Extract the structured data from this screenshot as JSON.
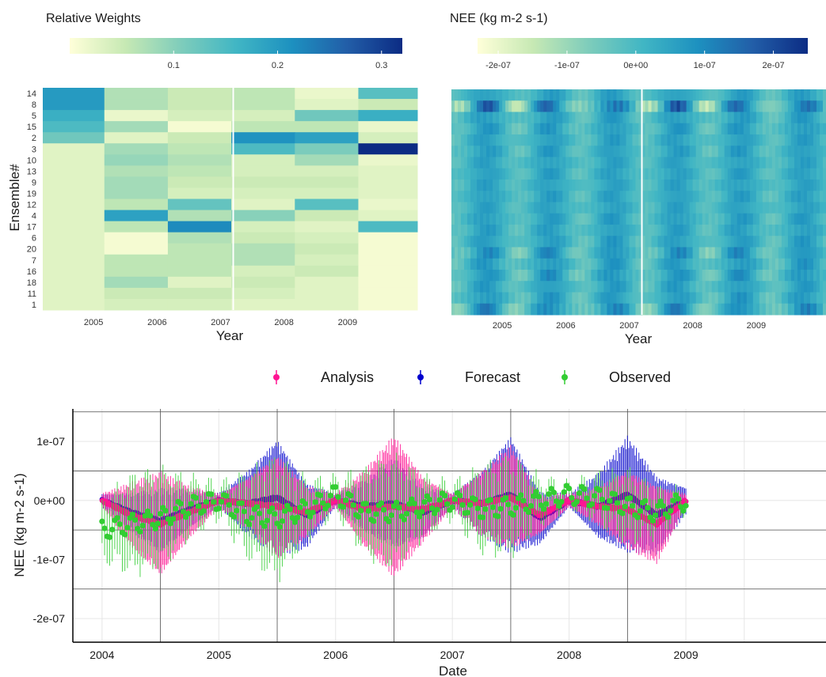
{
  "chart_data": [
    {
      "type": "heatmap",
      "legend_title": "Relative Weights",
      "legend_ticks": [
        "0.1",
        "0.2",
        "0.3"
      ],
      "legend_tick_values": [
        0.1,
        0.2,
        0.3
      ],
      "value_range": [
        0.0,
        0.32
      ],
      "colorscale": [
        "#ffffd9",
        "#c7e9b4",
        "#7fcdbb",
        "#41b6c4",
        "#1d91c0",
        "#225ea8",
        "#0c2c84"
      ],
      "xlabel": "Year",
      "ylabel": "Ensemble#",
      "x_ticks": [
        "2005",
        "2006",
        "2007",
        "2008",
        "2009"
      ],
      "x_tick_values": [
        2005,
        2006,
        2007,
        2008,
        2009
      ],
      "x_range": [
        2004.0,
        2009.9
      ],
      "y_categories": [
        "14",
        "8",
        "5",
        "15",
        "2",
        "3",
        "10",
        "13",
        "9",
        "19",
        "12",
        "4",
        "17",
        "6",
        "20",
        "7",
        "16",
        "18",
        "11",
        "1"
      ],
      "columns": [
        2004.5,
        2005.5,
        2006.5,
        2007.5,
        2008.5,
        2009.5
      ],
      "values": [
        [
          0.2,
          0.07,
          0.05,
          0.06,
          0.02,
          0.14
        ],
        [
          0.2,
          0.07,
          0.05,
          0.06,
          0.03,
          0.05
        ],
        [
          0.17,
          0.02,
          0.04,
          0.04,
          0.12,
          0.17
        ],
        [
          0.15,
          0.08,
          0.01,
          0.06,
          0.06,
          0.02
        ],
        [
          0.12,
          0.03,
          0.05,
          0.21,
          0.19,
          0.04
        ],
        [
          0.03,
          0.08,
          0.06,
          0.15,
          0.11,
          0.32
        ],
        [
          0.03,
          0.09,
          0.07,
          0.04,
          0.08,
          0.02
        ],
        [
          0.03,
          0.07,
          0.06,
          0.04,
          0.04,
          0.03
        ],
        [
          0.03,
          0.08,
          0.05,
          0.05,
          0.05,
          0.03
        ],
        [
          0.03,
          0.08,
          0.04,
          0.04,
          0.04,
          0.03
        ],
        [
          0.03,
          0.06,
          0.13,
          0.03,
          0.14,
          0.02
        ],
        [
          0.03,
          0.19,
          0.07,
          0.1,
          0.05,
          0.03
        ],
        [
          0.03,
          0.06,
          0.22,
          0.04,
          0.03,
          0.15
        ],
        [
          0.03,
          0.01,
          0.07,
          0.05,
          0.04,
          0.01
        ],
        [
          0.03,
          0.01,
          0.06,
          0.07,
          0.05,
          0.01
        ],
        [
          0.03,
          0.06,
          0.06,
          0.07,
          0.04,
          0.01
        ],
        [
          0.03,
          0.06,
          0.06,
          0.04,
          0.05,
          0.01
        ],
        [
          0.03,
          0.08,
          0.03,
          0.05,
          0.03,
          0.01
        ],
        [
          0.03,
          0.05,
          0.05,
          0.04,
          0.03,
          0.01
        ],
        [
          0.03,
          0.04,
          0.04,
          0.03,
          0.03,
          0.01
        ]
      ],
      "year_divider": 2007
    },
    {
      "type": "heatmap",
      "legend_title": "NEE (kg m-2 s-1)",
      "legend_ticks": [
        "-2e-07",
        "-1e-07",
        "0e+00",
        "1e-07",
        "2e-07"
      ],
      "legend_tick_values": [
        -2e-07,
        -1e-07,
        0,
        1e-07,
        2e-07
      ],
      "value_range": [
        -2.3e-07,
        2.5e-07
      ],
      "colorscale": [
        "#ffffd9",
        "#c7e9b4",
        "#7fcdbb",
        "#41b6c4",
        "#1d91c0",
        "#225ea8",
        "#0c2c84"
      ],
      "xlabel": "Year",
      "x_ticks": [
        "2005",
        "2006",
        "2007",
        "2008",
        "2009"
      ],
      "x_tick_values": [
        2005,
        2006,
        2007,
        2008,
        2009
      ],
      "x_range": [
        2004.0,
        2009.9
      ],
      "rows": 20,
      "row_variability": [
        0.8,
        2.4,
        0.9,
        1.0,
        0.8,
        0.9,
        0.7,
        0.8,
        0.7,
        0.8,
        0.7,
        0.9,
        0.8,
        0.9,
        1.4,
        1.0,
        1.2,
        0.9,
        1.0,
        1.6
      ],
      "year_divider": 2007
    },
    {
      "type": "scatter",
      "xlabel": "Date",
      "ylabel": "NEE (kg m-2 s-1)",
      "x_ticks": [
        "2004",
        "2005",
        "2006",
        "2007",
        "2008",
        "2009"
      ],
      "x_tick_values": [
        2004,
        2005,
        2006,
        2007,
        2008,
        2009
      ],
      "x_range": [
        2003.75,
        2010.2
      ],
      "y_ticks": [
        "1e-07",
        "0e+00",
        "-1e-07",
        "-2e-07"
      ],
      "y_tick_values": [
        1e-07,
        0,
        -1e-07,
        -2e-07
      ],
      "y_range": [
        -2.4e-07,
        1.55e-07
      ],
      "horizontal_reference_lines": [
        1.5e-07,
        5e-08,
        -5e-08,
        -1.5e-07
      ],
      "vertical_reference_lines": [
        2004.5,
        2005.5,
        2006.5,
        2007.5,
        2008.5
      ],
      "legend": [
        "Analysis",
        "Forecast",
        "Observed"
      ],
      "legend_placement": "top",
      "colors": {
        "Analysis": "#ff1493",
        "Forecast": "#0000cd",
        "Observed": "#32cd32"
      },
      "series": [
        {
          "name": "Analysis",
          "x": [
            2004.0,
            2004.25,
            2004.5,
            2004.75,
            2005.0,
            2005.25,
            2005.5,
            2005.75,
            2006.0,
            2006.25,
            2006.5,
            2006.75,
            2007.0,
            2007.25,
            2007.5,
            2007.75,
            2008.0,
            2008.25,
            2008.5,
            2008.75,
            2009.0
          ],
          "y": [
            0,
            -2.5e-08,
            -4e-08,
            -2e-08,
            0,
            -5e-09,
            -1e-08,
            -2e-08,
            0,
            -1.5e-08,
            -1e-08,
            -1.5e-08,
            0,
            -5e-09,
            5e-09,
            -2.5e-08,
            0,
            -1e-08,
            -1.5e-08,
            -4e-08,
            0
          ],
          "spread": [
            1e-08,
            5e-08,
            8e-08,
            4e-08,
            1e-08,
            4e-08,
            8e-08,
            4e-08,
            1e-08,
            6e-08,
            1.1e-07,
            5e-08,
            1e-08,
            5e-08,
            8e-08,
            3e-08,
            1e-08,
            3e-08,
            6e-08,
            6e-08,
            1e-08
          ]
        },
        {
          "name": "Forecast",
          "x": [
            2004.0,
            2004.25,
            2004.5,
            2004.75,
            2005.0,
            2005.25,
            2005.5,
            2005.75,
            2006.0,
            2006.25,
            2006.5,
            2006.75,
            2007.0,
            2007.25,
            2007.5,
            2007.75,
            2008.0,
            2008.25,
            2008.5,
            2008.75,
            2009.0
          ],
          "y": [
            0,
            -2e-08,
            -3.5e-08,
            -1.5e-08,
            0,
            -5e-09,
            5e-09,
            -2.5e-08,
            0,
            -1e-08,
            -5e-09,
            -2e-08,
            0,
            -5e-09,
            1e-08,
            -3e-08,
            0,
            -1e-08,
            1e-08,
            -2.5e-08,
            0
          ],
          "spread": [
            1e-08,
            3e-08,
            5e-08,
            3e-08,
            1e-08,
            5e-08,
            9e-08,
            5e-08,
            1e-08,
            4e-08,
            7e-08,
            4e-08,
            1e-08,
            5e-08,
            9e-08,
            4e-08,
            1e-08,
            5e-08,
            9e-08,
            6e-08,
            2e-08
          ]
        },
        {
          "name": "Observed",
          "x": [
            2004.0,
            2004.25,
            2004.5,
            2004.75,
            2005.0,
            2005.25,
            2005.5,
            2005.75,
            2006.0,
            2006.25,
            2006.5,
            2006.75,
            2007.0,
            2007.25,
            2007.5,
            2007.75,
            2008.0,
            2008.25,
            2008.5,
            2008.75,
            2009.0
          ],
          "y": [
            -5e-08,
            -4e-08,
            -3e-08,
            -1e-08,
            0,
            -2.5e-08,
            -3e-08,
            -1.5e-08,
            1e-08,
            -2e-08,
            -2e-08,
            -1e-08,
            0,
            -1.5e-08,
            -1e-08,
            0,
            1e-08,
            5e-09,
            -1e-08,
            -2e-08,
            0
          ],
          "spread": [
            4e-08,
            7e-08,
            7e-08,
            4e-08,
            2e-08,
            6e-08,
            9e-08,
            4e-08,
            2e-08,
            6e-08,
            8e-08,
            4e-08,
            2e-08,
            6e-08,
            7e-08,
            3e-08,
            1e-08,
            3e-08,
            5e-08,
            3e-08,
            1e-08
          ]
        }
      ]
    }
  ]
}
